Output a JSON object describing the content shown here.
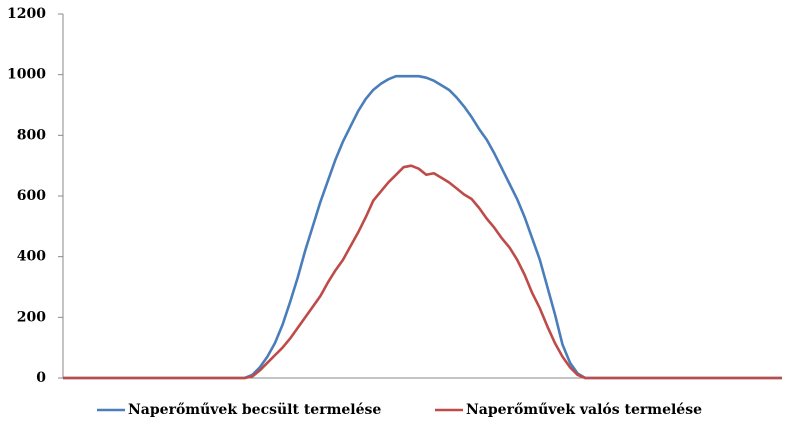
{
  "chart_data": {
    "type": "line",
    "series": [
      {
        "name": "Naperőművek becsült termelése",
        "color": "#4a7ebb",
        "values": [
          0,
          0,
          0,
          0,
          0,
          0,
          0,
          0,
          0,
          0,
          0,
          0,
          0,
          0,
          0,
          0,
          0,
          0,
          0,
          0,
          0,
          0,
          0,
          0,
          0,
          10,
          35,
          70,
          115,
          175,
          250,
          330,
          420,
          500,
          580,
          650,
          720,
          780,
          830,
          880,
          920,
          950,
          970,
          985,
          995,
          995,
          995,
          995,
          990,
          980,
          965,
          950,
          925,
          895,
          860,
          820,
          785,
          740,
          690,
          640,
          590,
          530,
          460,
          390,
          300,
          210,
          110,
          50,
          15,
          0,
          0,
          0,
          0,
          0,
          0,
          0,
          0,
          0,
          0,
          0,
          0,
          0,
          0,
          0,
          0,
          0,
          0,
          0,
          0,
          0,
          0,
          0,
          0,
          0,
          0,
          0
        ]
      },
      {
        "name": "Naperőművek valós termelése",
        "color": "#be4b48",
        "values": [
          0,
          0,
          0,
          0,
          0,
          0,
          0,
          0,
          0,
          0,
          0,
          0,
          0,
          0,
          0,
          0,
          0,
          0,
          0,
          0,
          0,
          0,
          0,
          0,
          0,
          5,
          25,
          50,
          75,
          100,
          130,
          165,
          200,
          235,
          270,
          315,
          355,
          390,
          435,
          480,
          530,
          585,
          615,
          645,
          670,
          695,
          700,
          690,
          670,
          675,
          660,
          645,
          625,
          605,
          590,
          560,
          525,
          495,
          460,
          430,
          390,
          340,
          280,
          230,
          170,
          115,
          70,
          35,
          10,
          0,
          0,
          0,
          0,
          0,
          0,
          0,
          0,
          0,
          0,
          0,
          0,
          0,
          0,
          0,
          0,
          0,
          0,
          0,
          0,
          0,
          0,
          0,
          0,
          0,
          0,
          0
        ]
      }
    ],
    "ylim": [
      0,
      1200
    ],
    "yticks": [
      0,
      200,
      400,
      600,
      800,
      1000,
      1200
    ]
  }
}
